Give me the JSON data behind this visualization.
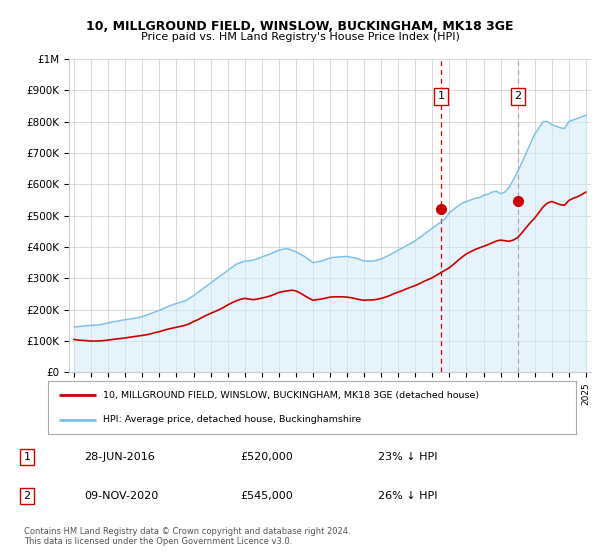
{
  "title": "10, MILLGROUND FIELD, WINSLOW, BUCKINGHAM, MK18 3GE",
  "subtitle": "Price paid vs. HM Land Registry's House Price Index (HPI)",
  "hpi_label": "HPI: Average price, detached house, Buckinghamshire",
  "price_label": "10, MILLGROUND FIELD, WINSLOW, BUCKINGHAM, MK18 3GE (detached house)",
  "hpi_color": "#7bbfe8",
  "hpi_fill_color": "#d0e9f7",
  "price_color": "#cc0000",
  "ann1_dash_color": "#cc0000",
  "ann2_dash_color": "#aaaaaa",
  "annotation1": {
    "num": "1",
    "date": "28-JUN-2016",
    "price": "£520,000",
    "pct": "23% ↓ HPI",
    "x_year": 2016.5,
    "y_val": 520000
  },
  "annotation2": {
    "num": "2",
    "date": "09-NOV-2020",
    "price": "£545,000",
    "pct": "26% ↓ HPI",
    "x_year": 2021.0,
    "y_val": 545000
  },
  "ylabel_ticks": [
    "£0",
    "£100K",
    "£200K",
    "£300K",
    "£400K",
    "£500K",
    "£600K",
    "£700K",
    "£800K",
    "£900K",
    "£1M"
  ],
  "ytick_values": [
    0,
    100000,
    200000,
    300000,
    400000,
    500000,
    600000,
    700000,
    800000,
    900000,
    1000000
  ],
  "xlim": [
    1994.7,
    2025.3
  ],
  "ylim": [
    0,
    1000000
  ],
  "footer": "Contains HM Land Registry data © Crown copyright and database right 2024.\nThis data is licensed under the Open Government Licence v3.0.",
  "hpi_data_years": [
    1995,
    1995.25,
    1995.5,
    1995.75,
    1996,
    1996.25,
    1996.5,
    1996.75,
    1997,
    1997.25,
    1997.5,
    1997.75,
    1998,
    1998.25,
    1998.5,
    1998.75,
    1999,
    1999.25,
    1999.5,
    1999.75,
    2000,
    2000.25,
    2000.5,
    2000.75,
    2001,
    2001.25,
    2001.5,
    2001.75,
    2002,
    2002.25,
    2002.5,
    2002.75,
    2003,
    2003.25,
    2003.5,
    2003.75,
    2004,
    2004.25,
    2004.5,
    2004.75,
    2005,
    2005.25,
    2005.5,
    2005.75,
    2006,
    2006.25,
    2006.5,
    2006.75,
    2007,
    2007.25,
    2007.5,
    2007.75,
    2008,
    2008.25,
    2008.5,
    2008.75,
    2009,
    2009.25,
    2009.5,
    2009.75,
    2010,
    2010.25,
    2010.5,
    2010.75,
    2011,
    2011.25,
    2011.5,
    2011.75,
    2012,
    2012.25,
    2012.5,
    2012.75,
    2013,
    2013.25,
    2013.5,
    2013.75,
    2014,
    2014.25,
    2014.5,
    2014.75,
    2015,
    2015.25,
    2015.5,
    2015.75,
    2016,
    2016.25,
    2016.5,
    2016.75,
    2017,
    2017.25,
    2017.5,
    2017.75,
    2018,
    2018.25,
    2018.5,
    2018.75,
    2019,
    2019.25,
    2019.5,
    2019.75,
    2020,
    2020.25,
    2020.5,
    2020.75,
    2021,
    2021.25,
    2021.5,
    2021.75,
    2022,
    2022.25,
    2022.5,
    2022.75,
    2023,
    2023.25,
    2023.5,
    2023.75,
    2024,
    2024.25,
    2024.5,
    2024.75,
    2025
  ],
  "hpi_data_values": [
    145000,
    146000,
    148000,
    149000,
    150000,
    151000,
    152000,
    155000,
    158000,
    161000,
    163000,
    166000,
    168000,
    170000,
    172000,
    175000,
    178000,
    183000,
    188000,
    193000,
    198000,
    204000,
    210000,
    215000,
    220000,
    224000,
    228000,
    236000,
    245000,
    255000,
    265000,
    275000,
    285000,
    295000,
    305000,
    315000,
    325000,
    335000,
    345000,
    350000,
    355000,
    356000,
    358000,
    363000,
    368000,
    373000,
    378000,
    384000,
    390000,
    393000,
    395000,
    390000,
    385000,
    377000,
    370000,
    360000,
    350000,
    353000,
    355000,
    360000,
    365000,
    367000,
    368000,
    369000,
    370000,
    367000,
    365000,
    360000,
    355000,
    355000,
    355000,
    358000,
    362000,
    368000,
    375000,
    382000,
    390000,
    397000,
    405000,
    412000,
    420000,
    430000,
    440000,
    450000,
    460000,
    470000,
    480000,
    490000,
    510000,
    520000,
    530000,
    540000,
    545000,
    550000,
    555000,
    557000,
    565000,
    568000,
    575000,
    578000,
    570000,
    575000,
    590000,
    615000,
    640000,
    670000,
    700000,
    730000,
    760000,
    780000,
    800000,
    800000,
    790000,
    785000,
    780000,
    778000,
    800000,
    805000,
    810000,
    815000,
    820000
  ],
  "price_data_years": [
    1995,
    1995.25,
    1995.5,
    1995.75,
    1996,
    1996.25,
    1996.5,
    1996.75,
    1997,
    1997.25,
    1997.5,
    1997.75,
    1998,
    1998.25,
    1998.5,
    1998.75,
    1999,
    1999.25,
    1999.5,
    1999.75,
    2000,
    2000.25,
    2000.5,
    2000.75,
    2001,
    2001.25,
    2001.5,
    2001.75,
    2002,
    2002.25,
    2002.5,
    2002.75,
    2003,
    2003.25,
    2003.5,
    2003.75,
    2004,
    2004.25,
    2004.5,
    2004.75,
    2005,
    2005.25,
    2005.5,
    2005.75,
    2006,
    2006.25,
    2006.5,
    2006.75,
    2007,
    2007.25,
    2007.5,
    2007.75,
    2008,
    2008.25,
    2008.5,
    2008.75,
    2009,
    2009.25,
    2009.5,
    2009.75,
    2010,
    2010.25,
    2010.5,
    2010.75,
    2011,
    2011.25,
    2011.5,
    2011.75,
    2012,
    2012.25,
    2012.5,
    2012.75,
    2013,
    2013.25,
    2013.5,
    2013.75,
    2014,
    2014.25,
    2014.5,
    2014.75,
    2015,
    2015.25,
    2015.5,
    2015.75,
    2016,
    2016.25,
    2016.5,
    2016.75,
    2017,
    2017.25,
    2017.5,
    2017.75,
    2018,
    2018.25,
    2018.5,
    2018.75,
    2019,
    2019.25,
    2019.5,
    2019.75,
    2020,
    2020.25,
    2020.5,
    2020.75,
    2021,
    2021.25,
    2021.5,
    2021.75,
    2022,
    2022.25,
    2022.5,
    2022.75,
    2023,
    2023.25,
    2023.5,
    2023.75,
    2024,
    2024.25,
    2024.5,
    2024.75,
    2025
  ],
  "price_data_values": [
    105000,
    103000,
    102000,
    101000,
    100000,
    100000,
    100500,
    101500,
    103000,
    105000,
    107000,
    108000,
    110000,
    112000,
    114000,
    116000,
    118000,
    120000,
    123000,
    127000,
    130000,
    134000,
    138000,
    141000,
    144000,
    147000,
    150000,
    155000,
    162000,
    168000,
    175000,
    182000,
    188000,
    194000,
    200000,
    207000,
    215000,
    222000,
    228000,
    233000,
    236000,
    234000,
    232000,
    234000,
    237000,
    240000,
    244000,
    249000,
    255000,
    258000,
    260000,
    262000,
    260000,
    253000,
    245000,
    237000,
    230000,
    232000,
    234000,
    237000,
    240000,
    241000,
    241000,
    241000,
    240000,
    238000,
    235000,
    232000,
    230000,
    231000,
    231000,
    233000,
    236000,
    240000,
    245000,
    251000,
    256000,
    261000,
    267000,
    272000,
    277000,
    283000,
    290000,
    296000,
    302000,
    310000,
    318000,
    326000,
    334000,
    345000,
    357000,
    368000,
    378000,
    385000,
    392000,
    397000,
    402000,
    407000,
    413000,
    419000,
    422000,
    420000,
    418000,
    422000,
    430000,
    445000,
    462000,
    478000,
    492000,
    510000,
    528000,
    540000,
    545000,
    540000,
    535000,
    533000,
    548000,
    555000,
    560000,
    567000,
    575000
  ]
}
